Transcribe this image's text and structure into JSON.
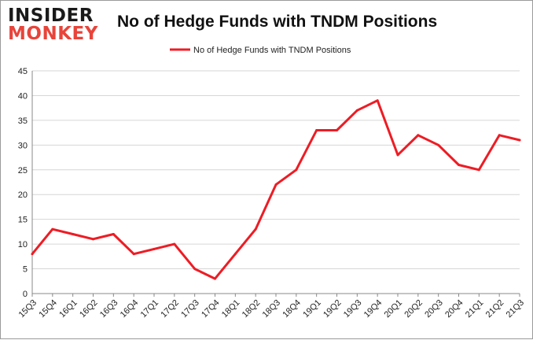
{
  "logo": {
    "line1": "INSIDER",
    "line2": "MONKEY"
  },
  "title": "No of Hedge Funds with TNDM Positions",
  "colors": {
    "series": "#ee1c24",
    "grid": "#d6d6d6",
    "axis": "#888888",
    "text": "#222222"
  },
  "chart_data": {
    "type": "line",
    "title": "No of Hedge Funds with TNDM Positions",
    "xlabel": "",
    "ylabel": "",
    "ylim": [
      0,
      45
    ],
    "yticks": [
      0,
      5,
      10,
      15,
      20,
      25,
      30,
      35,
      40,
      45
    ],
    "grid": true,
    "legend_position": "top-center",
    "categories": [
      "15Q3",
      "15Q4",
      "16Q1",
      "16Q2",
      "16Q3",
      "16Q4",
      "17Q1",
      "17Q2",
      "17Q3",
      "17Q4",
      "18Q1",
      "18Q2",
      "18Q3",
      "18Q4",
      "19Q1",
      "19Q2",
      "19Q3",
      "19Q4",
      "20Q1",
      "20Q2",
      "20Q3",
      "20Q4",
      "21Q1",
      "21Q2",
      "21Q3"
    ],
    "series": [
      {
        "name": "No of Hedge Funds with TNDM Positions",
        "values": [
          8,
          13,
          12,
          11,
          12,
          8,
          9,
          10,
          5,
          3,
          8,
          13,
          22,
          25,
          33,
          33,
          37,
          39,
          28,
          32,
          30,
          26,
          25,
          32,
          31
        ]
      }
    ]
  }
}
